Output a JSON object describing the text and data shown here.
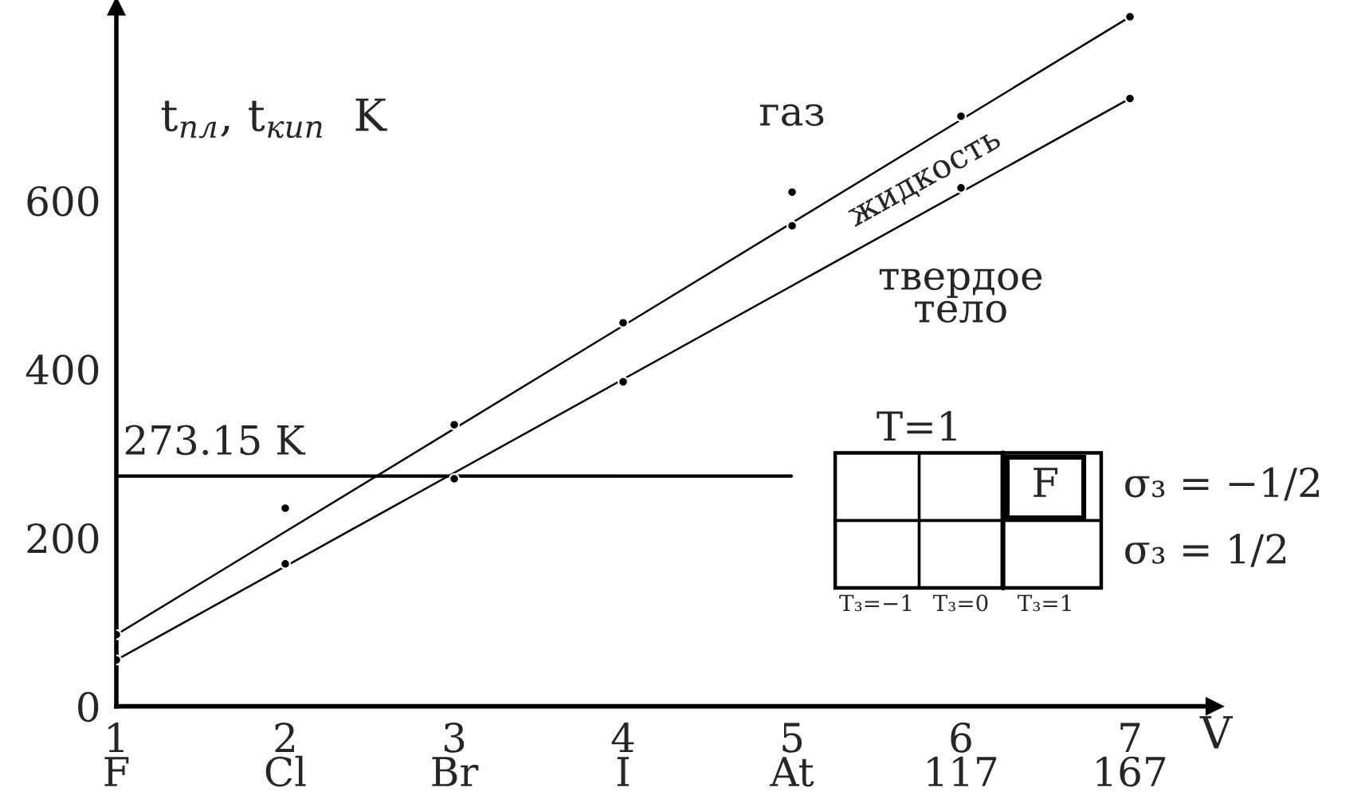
{
  "chart_data": {
    "type": "scatter",
    "xlabel": "V",
    "ylabel": "t$_{пл}$, t$_{кип}$  K",
    "categories": [
      "1\nF",
      "2\nCl",
      "3\nBr",
      "4\nI",
      "5\nAt",
      "6\n117",
      "7\n167"
    ],
    "ylim": [
      0,
      830
    ],
    "yticks": [
      0,
      200,
      400,
      600
    ],
    "series": [
      {
        "color": "#000000",
        "values": [
          85,
          235,
          334,
          455,
          610,
          700,
          818
        ]
      },
      {
        "color": "#000000",
        "values": [
          55,
          169,
          270,
          385,
          570,
          615,
          721
        ]
      },
      {
        "type": "line",
        "marker": "none",
        "x": [
          "1\nF",
          "7\n167"
        ],
        "color": "#000000",
        "values": [
          85,
          818
        ]
      },
      {
        "type": "line",
        "marker": "none",
        "x": [
          "1\nF",
          "7\n167"
        ],
        "color": "#000000",
        "values": [
          55,
          721
        ]
      }
    ],
    "marker": "circle",
    "line_style": "solid",
    "ref_lines": [
      {
        "axis": "y",
        "value": 273.15,
        "label": "273.15 K",
        "color": "#000000"
      }
    ],
    "annotations": [
      "газ",
      "жидкость",
      "твердое\nтело",
      "T=1",
      "F",
      "σ₃ = −1/2",
      "σ₃ = 1/2",
      "T₃=−1",
      "T₃=0",
      "T₃=1"
    ]
  }
}
